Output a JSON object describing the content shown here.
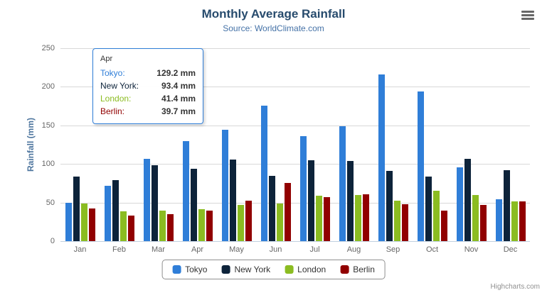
{
  "header": {
    "title": "Monthly Average Rainfall",
    "subtitle": "Source: WorldClimate.com"
  },
  "chart_data": {
    "type": "bar",
    "title": "Monthly Average Rainfall",
    "subtitle": "Source: WorldClimate.com",
    "xlabel": "",
    "ylabel": "Rainfall (mm)",
    "ylim": [
      0,
      250
    ],
    "yticks": [
      0,
      50,
      100,
      150,
      200,
      250
    ],
    "grid": true,
    "legend_position": "bottom",
    "categories": [
      "Jan",
      "Feb",
      "Mar",
      "Apr",
      "May",
      "Jun",
      "Jul",
      "Aug",
      "Sep",
      "Oct",
      "Nov",
      "Dec"
    ],
    "series": [
      {
        "name": "Tokyo",
        "color": "#2f7ed8",
        "values": [
          49.9,
          71.5,
          106.4,
          129.2,
          144.0,
          176.0,
          135.6,
          148.5,
          216.4,
          194.1,
          95.6,
          54.4
        ]
      },
      {
        "name": "New York",
        "color": "#0d233a",
        "values": [
          83.6,
          78.8,
          98.5,
          93.4,
          106.0,
          84.5,
          105.0,
          104.3,
          91.2,
          83.5,
          106.6,
          92.3
        ]
      },
      {
        "name": "London",
        "color": "#8bbc21",
        "values": [
          48.9,
          38.8,
          39.3,
          41.4,
          47.0,
          48.3,
          59.0,
          59.6,
          52.4,
          65.2,
          59.3,
          51.2
        ]
      },
      {
        "name": "Berlin",
        "color": "#910000",
        "values": [
          42.4,
          33.2,
          34.5,
          39.7,
          52.6,
          75.5,
          57.4,
          60.4,
          47.6,
          39.1,
          46.8,
          51.1
        ]
      }
    ]
  },
  "tooltip": {
    "category": "Apr",
    "rows": [
      {
        "label": "Tokyo:",
        "value": "129.2 mm",
        "color": "#2f7ed8"
      },
      {
        "label": "New York:",
        "value": "93.4 mm",
        "color": "#0d233a"
      },
      {
        "label": "London:",
        "value": "41.4 mm",
        "color": "#8bbc21"
      },
      {
        "label": "Berlin:",
        "value": "39.7 mm",
        "color": "#910000"
      }
    ]
  },
  "credits": "Highcharts.com"
}
